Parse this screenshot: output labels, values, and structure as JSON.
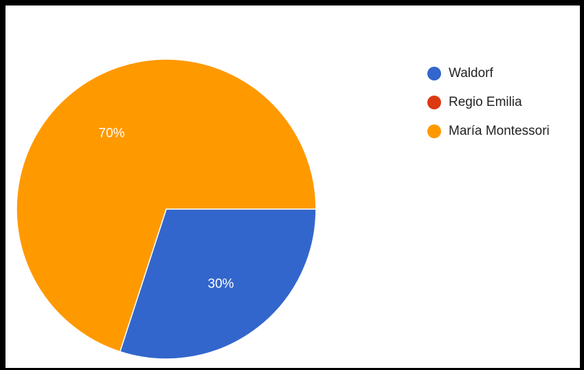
{
  "chart_data": {
    "type": "pie",
    "title": "",
    "series": [
      {
        "name": "Waldorf",
        "value": 30,
        "color": "#3366cc"
      },
      {
        "name": "Regio Emilia",
        "value": 0,
        "color": "#dc3912"
      },
      {
        "name": "María Montessori",
        "value": 70,
        "color": "#ff9900"
      }
    ],
    "data_labels": [
      "30%",
      "",
      "70%"
    ],
    "legend_position": "right",
    "start_angle_deg": 90,
    "direction": "clockwise"
  }
}
